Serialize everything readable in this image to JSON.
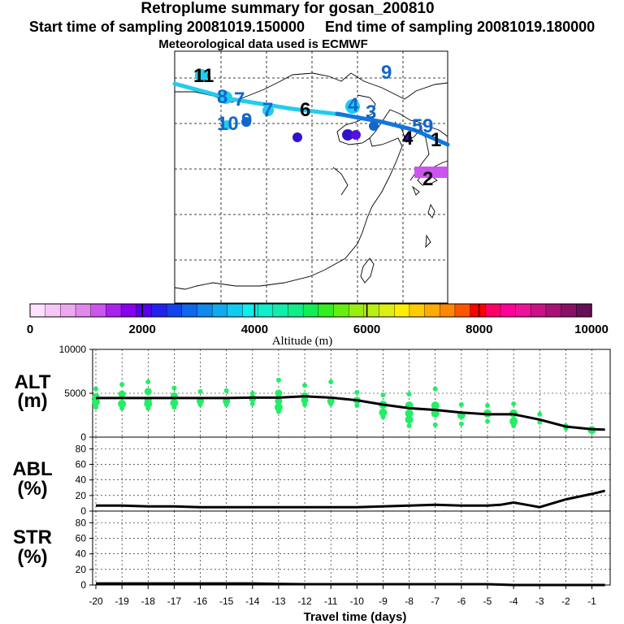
{
  "header": {
    "title": "Retroplume summary for gosan_200810",
    "start_label": "Start time of sampling 20081019.150000",
    "end_label": "End time of sampling 20081019.180000",
    "met_label": "Meteorological data used is ECMWF"
  },
  "colors": {
    "track_light": "#22ccee",
    "track_dark": "#1177dd",
    "marker_green": "#22ee66",
    "line": "#000000"
  },
  "map_panel": {
    "labels": [
      {
        "text": "11",
        "color": "#22ccee"
      },
      {
        "text": "8",
        "color": "#22ccee"
      },
      {
        "text": "7",
        "color": "#1166cc"
      },
      {
        "text": "7",
        "color": "#22ccee"
      },
      {
        "text": "10",
        "color": "#22ccee"
      },
      {
        "text": "9",
        "color": "#1166cc"
      },
      {
        "text": "6",
        "color": "#000000"
      },
      {
        "text": "4",
        "color": "#22ccee"
      },
      {
        "text": "3",
        "color": "#1166cc"
      },
      {
        "text": "9",
        "color": "#000000"
      },
      {
        "text": "5",
        "color": "#1166cc"
      },
      {
        "text": "9",
        "color": "#1166cc"
      },
      {
        "text": "4",
        "color": "#000000"
      },
      {
        "text": "1",
        "color": "#000000"
      },
      {
        "text": "2",
        "color": "#cc44cc"
      }
    ]
  },
  "colorbar": {
    "ticks": [
      "0",
      "2000",
      "4000",
      "6000",
      "8000",
      "10000"
    ],
    "label": "Altitude (m)",
    "colors": [
      "#ffe0ff",
      "#f6c6f6",
      "#eda8f0",
      "#e088ee",
      "#cc55ee",
      "#aa22ee",
      "#8800ee",
      "#5500ee",
      "#2222ee",
      "#1144ee",
      "#1166ee",
      "#1188ee",
      "#11aaee",
      "#11ccee",
      "#11eeee",
      "#11eecc",
      "#11eeaa",
      "#11ee88",
      "#11ee55",
      "#33ee22",
      "#66ee11",
      "#99ee11",
      "#bbee11",
      "#ddee11",
      "#ffee00",
      "#ffcc00",
      "#ffaa00",
      "#ff8800",
      "#ff5500",
      "#ff0000",
      "#ff0066",
      "#ff0099",
      "#ee1199",
      "#cc1188",
      "#aa1177",
      "#881166",
      "#661155"
    ]
  },
  "chart_data": [
    {
      "type": "line",
      "panel": "ALT",
      "ylabel": "ALT (m)",
      "ylim": [
        0,
        10000
      ],
      "yticks": [
        "10000",
        "5000",
        "0"
      ],
      "x": [
        -20,
        -19,
        -18,
        -17,
        -16,
        -15,
        -14,
        -13,
        -12,
        -11,
        -10,
        -9,
        -8,
        -7,
        -6,
        -5,
        -4,
        -3,
        -2,
        -1,
        -0.5
      ],
      "values": [
        4450,
        4450,
        4450,
        4450,
        4450,
        4450,
        4500,
        4500,
        4650,
        4500,
        4200,
        3700,
        3300,
        3100,
        2800,
        2600,
        2600,
        2000,
        1200,
        900,
        850
      ],
      "scatter": [
        {
          "x": -20,
          "y": [
            5500,
            4600,
            4000,
            3400
          ]
        },
        {
          "x": -19,
          "y": [
            6000,
            4900,
            3800,
            3300
          ]
        },
        {
          "x": -18,
          "y": [
            6300,
            5200,
            4200,
            3800,
            3300
          ]
        },
        {
          "x": -17,
          "y": [
            5600,
            4700,
            3900,
            3400
          ]
        },
        {
          "x": -16,
          "y": [
            5200,
            4100,
            3700
          ]
        },
        {
          "x": -15,
          "y": [
            5300,
            4100,
            3700
          ]
        },
        {
          "x": -14,
          "y": [
            5000,
            4400,
            3800
          ]
        },
        {
          "x": -13,
          "y": [
            6500,
            5000,
            4100,
            3400,
            2900
          ]
        },
        {
          "x": -12,
          "y": [
            5900,
            4700,
            4200,
            3700
          ]
        },
        {
          "x": -11,
          "y": [
            6300,
            4100,
            3800
          ]
        },
        {
          "x": -10,
          "y": [
            5100,
            4200,
            3600
          ]
        },
        {
          "x": -9,
          "y": [
            4800,
            3700,
            2800,
            2300
          ]
        },
        {
          "x": -8,
          "y": [
            4900,
            3600,
            2700,
            2000,
            1300
          ]
        },
        {
          "x": -7,
          "y": [
            5500,
            3600,
            2700,
            1400
          ]
        },
        {
          "x": -6,
          "y": [
            3700,
            2500,
            1500
          ]
        },
        {
          "x": -5,
          "y": [
            3600,
            2700,
            1800
          ]
        },
        {
          "x": -4,
          "y": [
            3800,
            2700,
            1800,
            1300
          ]
        },
        {
          "x": -3,
          "y": [
            2600,
            1700
          ]
        },
        {
          "x": -2,
          "y": [
            1300,
            1000
          ]
        },
        {
          "x": -1,
          "y": [
            1000,
            800,
            600
          ]
        }
      ]
    },
    {
      "type": "line",
      "panel": "ABL",
      "ylabel": "ABL (%)",
      "ylim": [
        0,
        90
      ],
      "yticks": [
        "80",
        "60",
        "40",
        "20",
        "0"
      ],
      "x": [
        -20,
        -19,
        -18,
        -17,
        -16,
        -15,
        -14,
        -13,
        -12,
        -11,
        -10,
        -9,
        -8,
        -7,
        -6,
        -5,
        -4.5,
        -4,
        -3.5,
        -3,
        -2,
        -1,
        -0.5
      ],
      "values": [
        7,
        7,
        6,
        6,
        5,
        5,
        5,
        5,
        5,
        5,
        5,
        6,
        7,
        8,
        7,
        7,
        8,
        11,
        8,
        5,
        15,
        22,
        26
      ]
    },
    {
      "type": "line",
      "panel": "STR",
      "ylabel": "STR (%)",
      "ylim": [
        0,
        90
      ],
      "yticks": [
        "80",
        "60",
        "40",
        "20",
        "0"
      ],
      "x": [
        -20,
        -19,
        -18,
        -17,
        -16,
        -15,
        -14,
        -13,
        -12,
        -11,
        -10,
        -9,
        -8,
        -7,
        -6,
        -5,
        -4,
        -3,
        -2,
        -1,
        -0.5
      ],
      "values": [
        2,
        2,
        2,
        2,
        2,
        2,
        2,
        1.5,
        1,
        1,
        1,
        1,
        1,
        1,
        1,
        1,
        0,
        0,
        0,
        0,
        0
      ],
      "xlabel": "Travel time (days)",
      "xticks": [
        "-20",
        "-19",
        "-18",
        "-17",
        "-16",
        "-15",
        "-14",
        "-13",
        "-12",
        "-11",
        "-10",
        "-9",
        "-8",
        "-7",
        "-6",
        "-5",
        "-4",
        "-3",
        "-2",
        "-1"
      ]
    }
  ]
}
